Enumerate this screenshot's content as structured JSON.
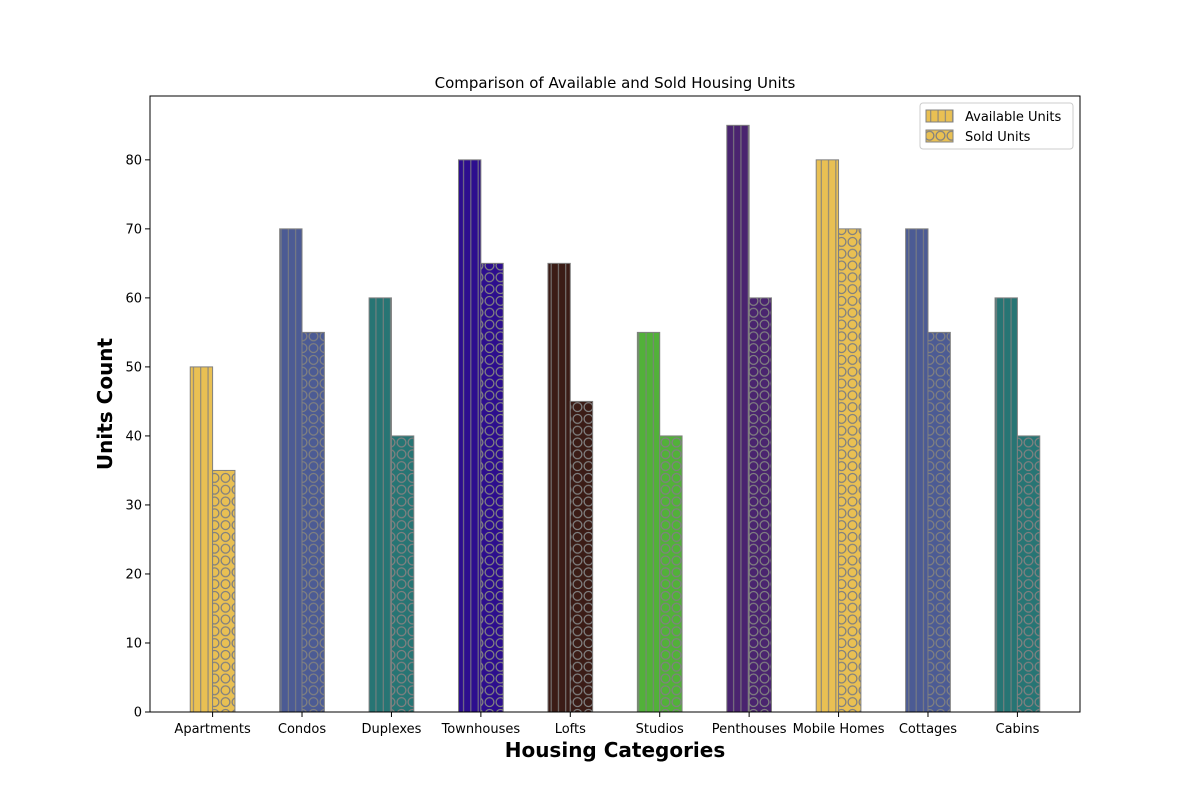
{
  "chart_data": {
    "type": "bar",
    "title": "Comparison of Available and Sold Housing Units",
    "xlabel": "Housing Categories",
    "ylabel": "Units Count",
    "ylim": [
      0,
      89.25
    ],
    "yticks": [
      0,
      10,
      20,
      30,
      40,
      50,
      60,
      70,
      80
    ],
    "grid": false,
    "legend_position": "top-right",
    "categories": [
      "Apartments",
      "Condos",
      "Duplexes",
      "Townhouses",
      "Lofts",
      "Studios",
      "Penthouses",
      "Mobile Homes",
      "Cottages",
      "Cabins"
    ],
    "category_colors": [
      "#e9c053",
      "#4c5b94",
      "#277574",
      "#2d0e8e",
      "#3b1c16",
      "#52b139",
      "#4a246f",
      "#e9c053",
      "#4c5b94",
      "#277574"
    ],
    "edge_color": "#808080",
    "series": [
      {
        "name": "Available Units",
        "pattern": "vertical-lines",
        "values": [
          50,
          70,
          60,
          80,
          65,
          55,
          85,
          80,
          70,
          60
        ]
      },
      {
        "name": "Sold Units",
        "pattern": "circles",
        "values": [
          35,
          55,
          40,
          65,
          45,
          40,
          60,
          70,
          55,
          40
        ]
      }
    ]
  }
}
